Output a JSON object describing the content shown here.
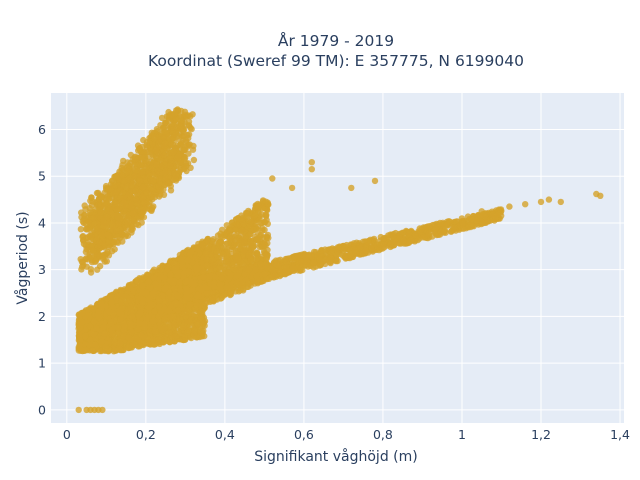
{
  "chart_data": {
    "type": "scatter",
    "title_line1": "År 1979 - 2019",
    "title_line2": "Koordinat (Sweref 99 TM): E 357775, N 6199040",
    "xlabel": "Signifikant våghöjd (m)",
    "ylabel": "Vågperiod (s)",
    "xlim": [
      -0.04,
      1.41
    ],
    "ylim": [
      -0.28,
      6.78
    ],
    "xticks": [
      0,
      0.2,
      0.4,
      0.6,
      0.8,
      1,
      1.2,
      1.4
    ],
    "xtick_labels": [
      "0",
      "0,2",
      "0,4",
      "0,6",
      "0,8",
      "1",
      "1,2",
      "1,4"
    ],
    "yticks": [
      0,
      1,
      2,
      3,
      4,
      5,
      6
    ],
    "ytick_labels": [
      "0",
      "1",
      "2",
      "3",
      "4",
      "5",
      "6"
    ],
    "grid": true,
    "marker_color": "#d4a32a",
    "plot_background": "#e5ecf6",
    "clusters": [
      {
        "x_range": [
          0.03,
          0.33
        ],
        "y_range": [
          1.25,
          3.6
        ],
        "description": "dense lower cloud"
      },
      {
        "x_range": [
          0.05,
          0.3
        ],
        "y_range": [
          3.4,
          6.4
        ],
        "description": "steep upper band"
      },
      {
        "x_range": [
          0.2,
          0.5
        ],
        "y_range": [
          2.0,
          4.5
        ],
        "description": "middle fan"
      },
      {
        "x_range": [
          0.3,
          1.1
        ],
        "y_range": [
          2.6,
          4.3
        ],
        "description": "extended tail"
      }
    ],
    "outliers": [
      {
        "x": 0.03,
        "y": 0.0
      },
      {
        "x": 0.05,
        "y": 0.0
      },
      {
        "x": 0.06,
        "y": 0.0
      },
      {
        "x": 0.07,
        "y": 0.0
      },
      {
        "x": 0.08,
        "y": 0.0
      },
      {
        "x": 0.09,
        "y": 0.0
      },
      {
        "x": 1.05,
        "y": 4.25
      },
      {
        "x": 1.12,
        "y": 4.35
      },
      {
        "x": 1.16,
        "y": 4.4
      },
      {
        "x": 1.2,
        "y": 4.45
      },
      {
        "x": 1.22,
        "y": 4.5
      },
      {
        "x": 1.25,
        "y": 4.45
      },
      {
        "x": 1.34,
        "y": 4.62
      },
      {
        "x": 1.35,
        "y": 4.58
      },
      {
        "x": 0.62,
        "y": 5.3
      },
      {
        "x": 0.62,
        "y": 5.15
      },
      {
        "x": 0.72,
        "y": 4.75
      },
      {
        "x": 0.78,
        "y": 4.9
      },
      {
        "x": 0.52,
        "y": 4.95
      },
      {
        "x": 0.57,
        "y": 4.75
      }
    ]
  }
}
